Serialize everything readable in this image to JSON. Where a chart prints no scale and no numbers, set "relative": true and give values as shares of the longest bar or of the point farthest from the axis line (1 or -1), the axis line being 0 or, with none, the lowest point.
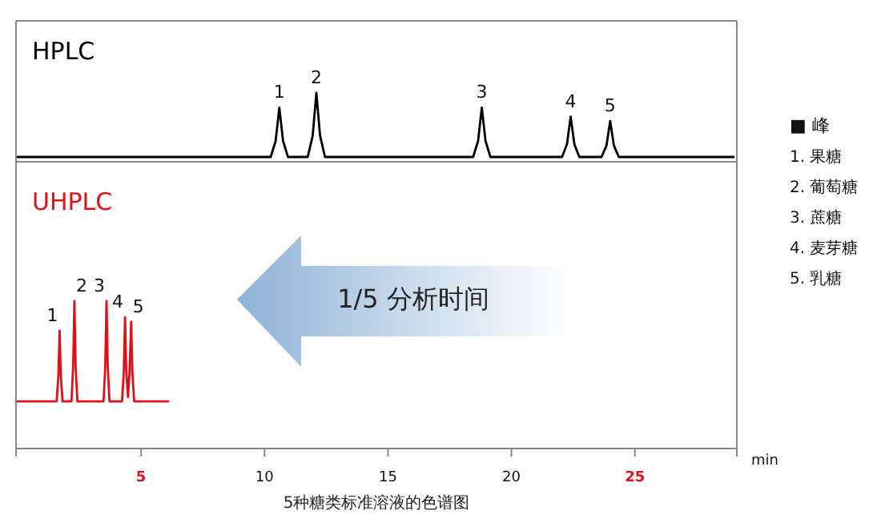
{
  "chart_data": [
    {
      "type": "line",
      "title": "HPLC",
      "relative": true,
      "xlim": [
        0,
        29
      ],
      "tick_labels": false,
      "series": [
        {
          "color": "#000000",
          "x": [
            0,
            10.25,
            10.45,
            10.6,
            10.75,
            10.95,
            11.75,
            11.95,
            12.1,
            12.25,
            12.45,
            18.45,
            18.65,
            18.8,
            18.95,
            19.15,
            22.05,
            22.25,
            22.4,
            22.55,
            22.75,
            23.65,
            23.85,
            24.0,
            24.15,
            24.35,
            29
          ],
          "values": [
            0,
            0,
            0.25,
            0.77,
            0.25,
            0,
            0,
            0.33,
            1,
            0.33,
            0,
            0,
            0.25,
            0.77,
            0.25,
            0,
            0,
            0.2,
            0.63,
            0.2,
            0,
            0,
            0.18,
            0.56,
            0.18,
            0,
            0
          ]
        }
      ],
      "annotations": [
        {
          "text": "1",
          "x": 10.6,
          "y": 0.77
        },
        {
          "text": "2",
          "x": 12.1,
          "y": 1
        },
        {
          "text": "3",
          "x": 18.8,
          "y": 0.77
        },
        {
          "text": "4",
          "x": 22.4,
          "y": 0.63
        },
        {
          "text": "5",
          "x": 24.0,
          "y": 0.56
        },
        "■ 峰",
        "1. 果糖",
        "2. 葡萄糖",
        "3. 蔗糖",
        "4. 麦芽糖",
        "5. 乳糖"
      ]
    },
    {
      "type": "line",
      "title": "UHPLC",
      "relative": true,
      "xlim": [
        0,
        29
      ],
      "xticks": [
        5,
        10,
        15,
        20,
        25
      ],
      "xlabel": "min",
      "tick_labels": "x",
      "series": [
        {
          "color": "#e0101a",
          "x": [
            0,
            1.58,
            1.65,
            1.7,
            1.75,
            1.82,
            2.18,
            2.25,
            2.3,
            2.35,
            2.42,
            3.48,
            3.55,
            3.6,
            3.65,
            3.72,
            4.23,
            4.3,
            4.35,
            4.4,
            4.47,
            4.53,
            4.6,
            4.65,
            4.72,
            6.1
          ],
          "values": [
            0.32,
            0.32,
            0.49,
            0.8,
            0.49,
            0.32,
            0.32,
            0.56,
            1,
            0.56,
            0.32,
            0.32,
            0.56,
            1,
            0.56,
            0.32,
            0.32,
            0.52,
            0.89,
            0.52,
            0.35,
            0.51,
            0.86,
            0.51,
            0.32,
            0.32
          ]
        }
      ],
      "annotations": [
        {
          "text": "1",
          "x": 1.7,
          "y": 0.8
        },
        {
          "text": "2",
          "x": 2.3,
          "y": 1
        },
        {
          "text": "3",
          "x": 3.6,
          "y": 1
        },
        {
          "text": "4",
          "x": 4.35,
          "y": 0.89
        },
        {
          "text": "5",
          "x": 4.6,
          "y": 0.86
        },
        "1/5 分析时间",
        "5种糖类标准溶液的色谱图"
      ]
    }
  ]
}
